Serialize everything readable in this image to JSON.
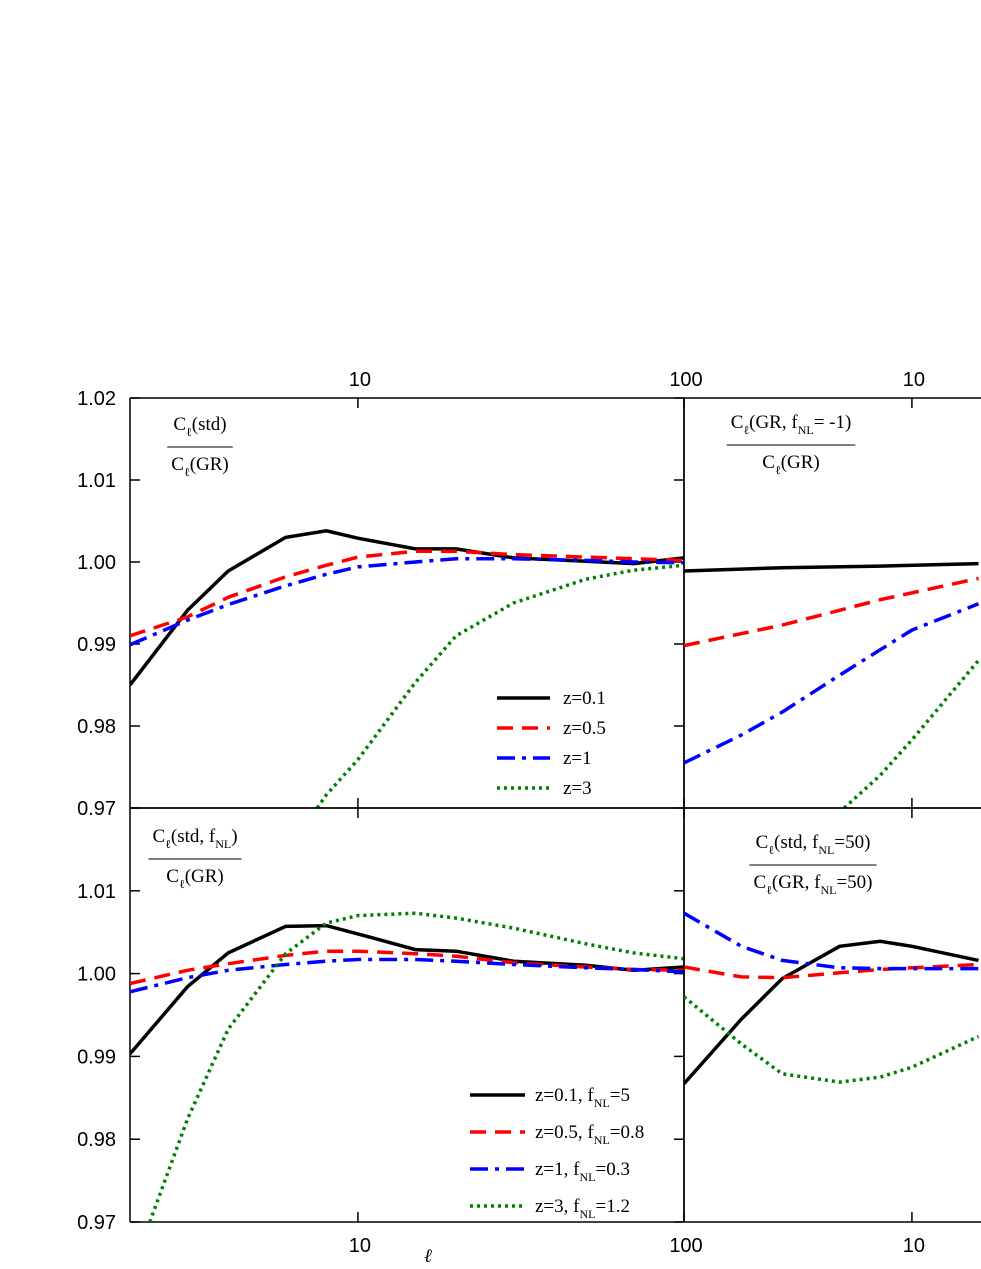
{
  "chart_data": [
    {
      "type": "line",
      "xscale": "log",
      "xlim": [
        2,
        100
      ],
      "ylim": [
        0.97,
        1.02
      ],
      "xticks": [
        10,
        100
      ],
      "yticks": [
        0.97,
        0.98,
        0.99,
        {
          "value": 1,
          "label": "1.00"
        },
        1.01,
        1.02
      ],
      "annotation": {
        "numerator": [
          {
            "text": "C"
          },
          {
            "sub": "ℓ"
          },
          {
            "text": "(std)"
          }
        ],
        "denominator": [
          {
            "text": "C"
          },
          {
            "sub": "ℓ"
          },
          {
            "text": "(GR)"
          }
        ]
      },
      "legend": "lower right",
      "series": [
        {
          "name": [
            {
              "text": "z=0.1"
            }
          ],
          "color": "#000000",
          "dash": "solid",
          "x": [
            2,
            3,
            4,
            6,
            8,
            10,
            15,
            20,
            30,
            50,
            70,
            100
          ],
          "values": [
            0.985,
            0.9941,
            0.9989,
            1.003,
            1.0038,
            1.0029,
            1.0016,
            1.0016,
            1.0005,
            1.0001,
            0.9998,
            1.0005
          ]
        },
        {
          "name": [
            {
              "text": "z=0.5"
            }
          ],
          "color": "#ff0000",
          "dash": "dashed",
          "x": [
            2,
            3,
            4,
            6,
            8,
            10,
            15,
            20,
            30,
            50,
            70,
            100
          ],
          "values": [
            0.991,
            0.9933,
            0.9957,
            0.9982,
            0.9996,
            1.0006,
            1.0013,
            1.0013,
            1.0009,
            1.0006,
            1.0004,
            1.0002
          ]
        },
        {
          "name": [
            {
              "text": "z=1"
            }
          ],
          "color": "#0000ff",
          "dash": "dashdot",
          "x": [
            2,
            3,
            4,
            6,
            8,
            10,
            15,
            20,
            30,
            50,
            70,
            100
          ],
          "values": [
            0.9899,
            0.9929,
            0.9948,
            0.9971,
            0.9985,
            0.9994,
            1.0,
            1.0004,
            1.0004,
            1.0002,
            1.0,
            0.9999
          ]
        },
        {
          "name": [
            {
              "text": "z=3"
            }
          ],
          "color": "#008000",
          "dash": "dotted",
          "x": [
            7.5,
            8,
            10,
            15,
            20,
            30,
            50,
            70,
            100
          ],
          "values": [
            0.97,
            0.9716,
            0.9759,
            0.9853,
            0.991,
            0.995,
            0.9979,
            0.999,
            0.9996
          ]
        }
      ]
    },
    {
      "type": "line",
      "xscale": "log",
      "xlim": [
        2,
        100
      ],
      "ylim": [
        0.97,
        1.02
      ],
      "xticks": [
        10
      ],
      "annotation": {
        "numerator": [
          {
            "text": "C"
          },
          {
            "sub": "ℓ"
          },
          {
            "text": "(GR, f"
          },
          {
            "sub": "NL"
          },
          {
            "text": "= -1)"
          }
        ],
        "denominator": [
          {
            "text": "C"
          },
          {
            "sub": "ℓ"
          },
          {
            "text": "(GR)"
          }
        ]
      },
      "series": [
        {
          "color": "#000000",
          "dash": "solid",
          "x": [
            2,
            4,
            8,
            16
          ],
          "values": [
            0.9989,
            0.9993,
            0.9995,
            0.9998
          ]
        },
        {
          "color": "#ff0000",
          "dash": "dashed",
          "x": [
            2,
            4,
            8,
            16
          ],
          "values": [
            0.9898,
            0.9923,
            0.9954,
            0.998
          ]
        },
        {
          "color": "#0000ff",
          "dash": "dashdot",
          "x": [
            2,
            3,
            4,
            6,
            8,
            10,
            16
          ],
          "values": [
            0.9755,
            0.9789,
            0.9817,
            0.9862,
            0.9893,
            0.9917,
            0.9949
          ]
        },
        {
          "color": "#008000",
          "dash": "dotted",
          "x": [
            6.2,
            8,
            10,
            16
          ],
          "values": [
            0.97,
            0.974,
            0.9783,
            0.988
          ]
        }
      ]
    },
    {
      "type": "line",
      "xscale": "log",
      "xlim": [
        2,
        100
      ],
      "ylim": [
        0.97,
        1.02
      ],
      "xticks": [
        10,
        100
      ],
      "yticks": [
        0.97,
        0.98,
        0.99,
        {
          "value": 1,
          "label": "1.00"
        },
        1.01
      ],
      "xlabel": "ℓ",
      "annotation": {
        "numerator": [
          {
            "text": "C"
          },
          {
            "sub": "ℓ"
          },
          {
            "text": "(std, f"
          },
          {
            "sub": "NL"
          },
          {
            "text": ")"
          }
        ],
        "denominator": [
          {
            "text": "C"
          },
          {
            "sub": "ℓ"
          },
          {
            "text": "(GR)"
          }
        ]
      },
      "legend": "lower right",
      "series": [
        {
          "name": [
            {
              "text": "z=0.1, f"
            },
            {
              "sub": "NL"
            },
            {
              "text": "=5"
            }
          ],
          "color": "#000000",
          "dash": "solid",
          "x": [
            2,
            3,
            4,
            6,
            8,
            10,
            15,
            20,
            30,
            50,
            70,
            100
          ],
          "values": [
            0.9903,
            0.9984,
            1.0025,
            1.0057,
            1.0058,
            1.0048,
            1.0029,
            1.0027,
            1.0015,
            1.001,
            1.0004,
            1.0008
          ]
        },
        {
          "name": [
            {
              "text": "z=0.5, f"
            },
            {
              "sub": "NL"
            },
            {
              "text": "=0.8"
            }
          ],
          "color": "#ff0000",
          "dash": "dashed",
          "x": [
            2,
            3,
            4,
            6,
            8,
            10,
            15,
            20,
            30,
            50,
            70,
            100
          ],
          "values": [
            0.9988,
            1.0004,
            1.0012,
            1.0022,
            1.0027,
            1.0027,
            1.0024,
            1.0021,
            1.0013,
            1.0008,
            1.0005,
            1.0004
          ]
        },
        {
          "name": [
            {
              "text": "z=1, f"
            },
            {
              "sub": "NL"
            },
            {
              "text": "=0.3"
            }
          ],
          "color": "#0000ff",
          "dash": "dashdot",
          "x": [
            2,
            3,
            4,
            6,
            8,
            10,
            15,
            20,
            30,
            50,
            70,
            100
          ],
          "values": [
            0.9978,
            0.9995,
            1.0004,
            1.0011,
            1.0015,
            1.0017,
            1.0017,
            1.0015,
            1.0011,
            1.0007,
            1.0005,
            1.0002
          ]
        },
        {
          "name": [
            {
              "text": "z=3, f"
            },
            {
              "sub": "NL"
            },
            {
              "text": "=1.2"
            }
          ],
          "color": "#008000",
          "dash": "dotted",
          "x": [
            2.3,
            3,
            4,
            6,
            8,
            10,
            15,
            20,
            30,
            50,
            70,
            100
          ],
          "values": [
            0.97,
            0.9824,
            0.9933,
            1.0024,
            1.0061,
            1.007,
            1.0073,
            1.0067,
            1.0055,
            1.0036,
            1.0025,
            1.0018
          ]
        }
      ]
    },
    {
      "type": "line",
      "xscale": "log",
      "xlim": [
        2,
        100
      ],
      "ylim": [
        0.97,
        1.02
      ],
      "xticks": [
        10
      ],
      "annotation": {
        "numerator": [
          {
            "text": "C"
          },
          {
            "sub": "ℓ"
          },
          {
            "text": "(std, f"
          },
          {
            "sub": "NL"
          },
          {
            "text": "=50)"
          }
        ],
        "denominator": [
          {
            "text": "C"
          },
          {
            "sub": "ℓ"
          },
          {
            "text": "(GR, f"
          },
          {
            "sub": "NL"
          },
          {
            "text": "=50)"
          }
        ]
      },
      "series": [
        {
          "color": "#000000",
          "dash": "solid",
          "x": [
            2,
            3,
            4,
            6,
            8,
            10,
            16
          ],
          "values": [
            0.9867,
            0.9945,
            0.9994,
            1.0033,
            1.0039,
            1.0033,
            1.0016
          ]
        },
        {
          "color": "#ff0000",
          "dash": "dashed",
          "x": [
            2,
            3,
            4,
            6,
            8,
            10,
            16
          ],
          "values": [
            1.0008,
            0.9996,
            0.9995,
            1.0001,
            1.0005,
            1.0007,
            1.0011
          ]
        },
        {
          "color": "#0000ff",
          "dash": "dashdot",
          "x": [
            2,
            3,
            4,
            6,
            8,
            10,
            16
          ],
          "values": [
            1.0073,
            1.0033,
            1.0016,
            1.0007,
            1.0006,
            1.0006,
            1.0006
          ]
        },
        {
          "color": "#008000",
          "dash": "dotted",
          "x": [
            2,
            3,
            4,
            6,
            8,
            10,
            16
          ],
          "values": [
            0.9972,
            0.9915,
            0.9879,
            0.9869,
            0.9875,
            0.9887,
            0.9924
          ]
        }
      ]
    }
  ]
}
